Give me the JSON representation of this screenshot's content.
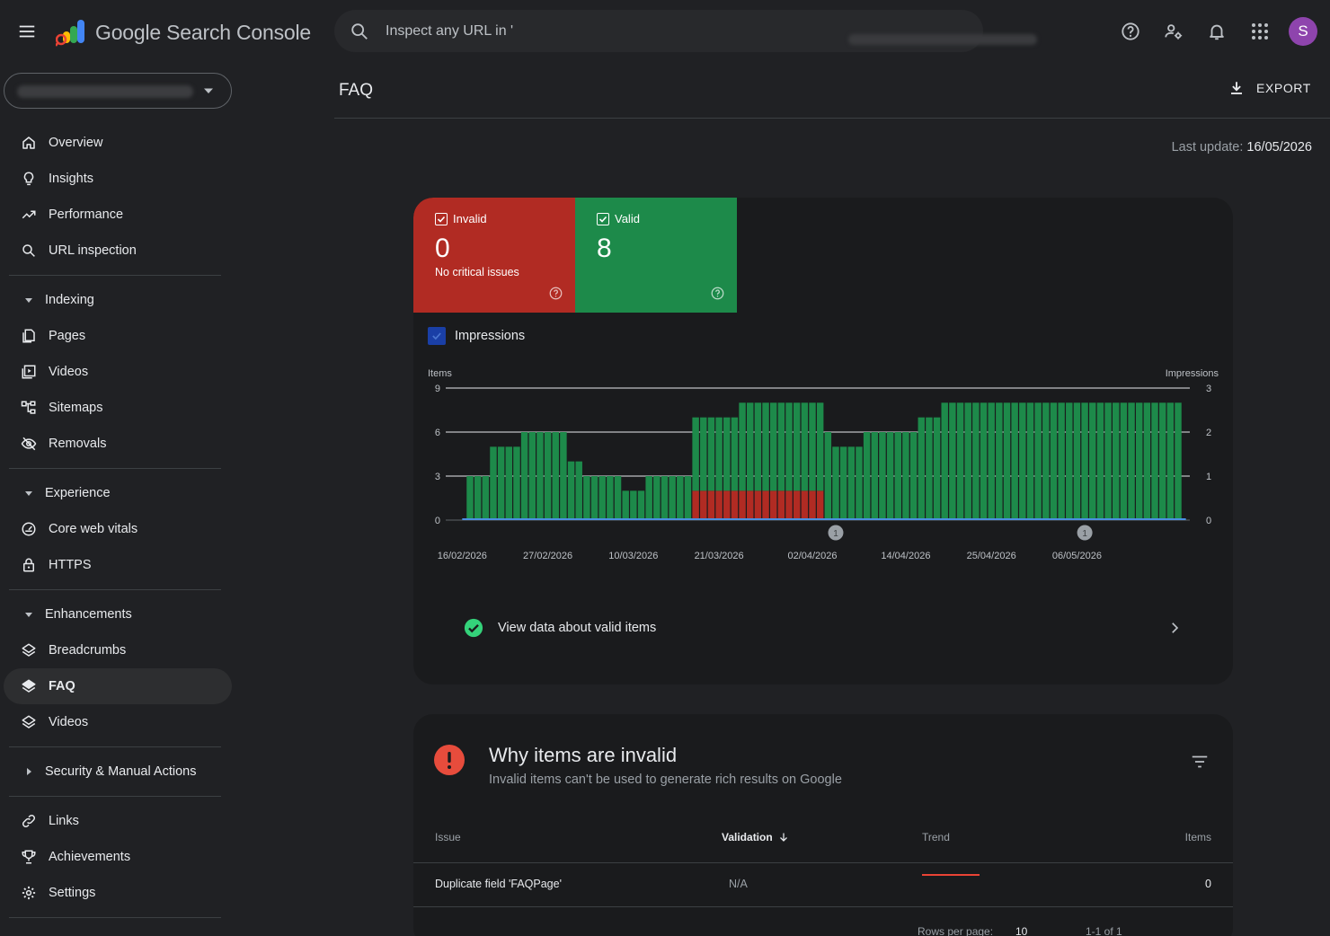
{
  "app": {
    "title": "Google Search Console"
  },
  "search": {
    "placeholder": "Inspect any URL in '",
    "placeholder_tail": "'"
  },
  "avatar": {
    "initial": "S"
  },
  "sidebar": {
    "items_top": [
      {
        "label": "Overview",
        "icon": "home-icon"
      },
      {
        "label": "Insights",
        "icon": "lightbulb-icon"
      },
      {
        "label": "Performance",
        "icon": "trending-up-icon"
      },
      {
        "label": "URL inspection",
        "icon": "search-icon"
      }
    ],
    "indexing": {
      "label": "Indexing",
      "items": [
        {
          "label": "Pages",
          "icon": "pages-icon"
        },
        {
          "label": "Videos",
          "icon": "video-icon"
        },
        {
          "label": "Sitemaps",
          "icon": "sitemap-icon"
        },
        {
          "label": "Removals",
          "icon": "eye-off-icon"
        }
      ]
    },
    "experience": {
      "label": "Experience",
      "items": [
        {
          "label": "Core web vitals",
          "icon": "gauge-icon"
        },
        {
          "label": "HTTPS",
          "icon": "lock-icon"
        }
      ]
    },
    "enhancements": {
      "label": "Enhancements",
      "items": [
        {
          "label": "Breadcrumbs",
          "icon": "layers-icon"
        },
        {
          "label": "FAQ",
          "icon": "layers-icon",
          "active": true
        },
        {
          "label": "Videos",
          "icon": "layers-icon"
        }
      ]
    },
    "security": {
      "label": "Security & Manual Actions"
    },
    "items_bottom": [
      {
        "label": "Links",
        "icon": "link-icon"
      },
      {
        "label": "Achievements",
        "icon": "trophy-icon"
      },
      {
        "label": "Settings",
        "icon": "gear-icon"
      }
    ]
  },
  "page": {
    "title": "FAQ",
    "export_label": "EXPORT",
    "last_update_label": "Last update:",
    "last_update_value": "16/05/2026"
  },
  "summary": {
    "invalid": {
      "label": "Invalid",
      "count": "0",
      "sub": "No critical issues",
      "color": "#b12b23"
    },
    "valid": {
      "label": "Valid",
      "count": "8",
      "color": "#1d8a4a"
    },
    "impressions_label": "Impressions"
  },
  "chart_data": {
    "type": "bar",
    "stacked": true,
    "left_axis_label": "Items",
    "right_axis_label": "Impressions",
    "y_ticks": [
      0,
      3,
      6,
      9
    ],
    "y2_ticks": [
      0,
      1,
      2,
      3
    ],
    "ylim": [
      0,
      9
    ],
    "y2lim": [
      0,
      3
    ],
    "x_tick_labels": [
      "16/02/2026",
      "27/02/2026",
      "10/03/2026",
      "21/03/2026",
      "02/04/2026",
      "14/04/2026",
      "25/04/2026",
      "06/05/2026"
    ],
    "x_tick_indices": [
      0,
      11,
      22,
      33,
      45,
      57,
      68,
      79
    ],
    "annotations": [
      {
        "index": 48,
        "label": "1"
      },
      {
        "index": 80,
        "label": "1"
      }
    ],
    "series": [
      {
        "name": "Valid",
        "color": "#1d8a4a",
        "values": [
          0,
          3,
          3,
          3,
          5,
          5,
          5,
          5,
          6,
          6,
          6,
          6,
          6,
          6,
          4,
          4,
          3,
          3,
          3,
          3,
          3,
          2,
          2,
          2,
          3,
          3,
          3,
          3,
          3,
          3,
          5,
          5,
          5,
          5,
          5,
          5,
          6,
          6,
          6,
          6,
          6,
          6,
          6,
          6,
          6,
          6,
          6,
          6,
          5,
          5,
          5,
          5,
          6,
          6,
          6,
          6,
          6,
          6,
          6,
          7,
          7,
          7,
          8,
          8,
          8,
          8,
          8,
          8,
          8,
          8,
          8,
          8,
          8,
          8,
          8,
          8,
          8,
          8,
          8,
          8,
          8,
          8,
          8,
          8,
          8,
          8,
          8,
          8,
          8,
          8,
          8,
          8,
          8,
          0
        ]
      },
      {
        "name": "Invalid",
        "color": "#b12b23",
        "values": [
          0,
          0,
          0,
          0,
          0,
          0,
          0,
          0,
          0,
          0,
          0,
          0,
          0,
          0,
          0,
          0,
          0,
          0,
          0,
          0,
          0,
          0,
          0,
          0,
          0,
          0,
          0,
          0,
          0,
          0,
          2,
          2,
          2,
          2,
          2,
          2,
          2,
          2,
          2,
          2,
          2,
          2,
          2,
          2,
          2,
          2,
          2,
          0,
          0,
          0,
          0,
          0,
          0,
          0,
          0,
          0,
          0,
          0,
          0,
          0,
          0,
          0,
          0,
          0,
          0,
          0,
          0,
          0,
          0,
          0,
          0,
          0,
          0,
          0,
          0,
          0,
          0,
          0,
          0,
          0,
          0,
          0,
          0,
          0,
          0,
          0,
          0,
          0,
          0,
          0,
          0,
          0,
          0,
          0
        ]
      },
      {
        "name": "Impressions",
        "color": "#4a90e2",
        "axis": "right",
        "values": [
          0,
          0,
          0,
          0,
          0,
          0,
          0,
          0,
          0,
          0,
          0,
          0,
          0,
          0,
          0,
          0,
          0,
          0,
          0,
          0,
          0,
          0,
          0,
          0,
          0,
          0,
          0,
          0,
          0,
          0,
          0,
          0,
          0,
          0,
          0,
          0,
          0,
          0,
          0,
          0,
          0,
          0,
          0,
          0,
          0,
          0,
          0,
          0,
          0,
          0,
          0,
          0,
          0,
          0,
          0,
          0,
          0,
          0,
          0,
          0,
          0,
          0,
          0,
          0,
          0,
          0,
          0,
          0,
          0,
          0,
          0,
          0,
          0,
          0,
          0,
          0,
          0,
          0,
          0,
          0,
          0,
          0,
          0,
          0,
          0,
          0,
          0,
          0,
          0,
          0,
          0,
          0,
          0,
          0
        ]
      }
    ]
  },
  "valid_link": {
    "label": "View data about valid items"
  },
  "invalid_section": {
    "title": "Why items are invalid",
    "subtitle": "Invalid items can't be used to generate rich results on Google",
    "columns": {
      "issue": "Issue",
      "validation": "Validation",
      "trend": "Trend",
      "items": "Items"
    },
    "rows": [
      {
        "issue": "Duplicate field 'FAQPage'",
        "validation": "N/A",
        "items": "0"
      }
    ],
    "pagination": {
      "rows_per_page_label": "Rows per page:",
      "rows_per_page": "10",
      "range": "1-1 of 1"
    }
  }
}
